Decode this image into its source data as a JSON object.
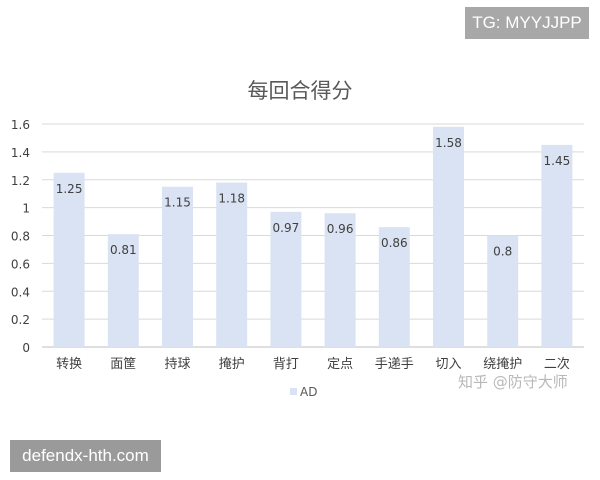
{
  "watermark_top": "TG: MYYJJPP",
  "watermark_bottom": "defendx-hth.com",
  "watermark_chart": "知乎 @防守大师",
  "colors": {
    "bar": "#dae3f3",
    "grid": "#d9d9d9",
    "axis": "#bfbfbf",
    "text": "#404040",
    "title": "#595959"
  },
  "chart_data": {
    "type": "bar",
    "title": "每回合得分",
    "xlabel": "",
    "ylabel": "",
    "categories": [
      "转换",
      "面筐",
      "持球",
      "掩护",
      "背打",
      "定点",
      "手递手",
      "切入",
      "绕掩护",
      "二次"
    ],
    "series": [
      {
        "name": "AD",
        "values": [
          1.25,
          0.81,
          1.15,
          1.18,
          0.97,
          0.96,
          0.86,
          1.58,
          0.8,
          1.45
        ]
      }
    ],
    "ylim": [
      0,
      1.6
    ],
    "yticks": [
      "0",
      "0.2",
      "0.4",
      "0.6",
      "0.8",
      "1",
      "1.2",
      "1.4",
      "1.6"
    ],
    "grid": true,
    "legend": "bottom"
  }
}
